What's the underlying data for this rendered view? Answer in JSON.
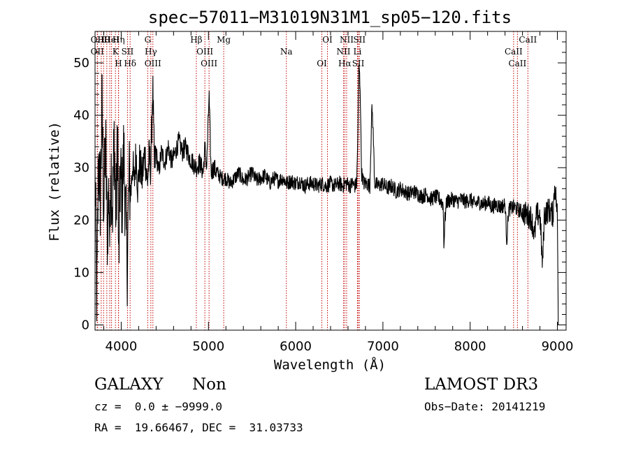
{
  "chart_data": {
    "type": "line",
    "title": "spec−57011−M31019N31M1_sp05−120.fits",
    "xlabel": "Wavelength (Å)",
    "ylabel": "Flux (relative)",
    "xlim": [
      3700,
      9100
    ],
    "ylim": [
      -1,
      56
    ],
    "xticks": [
      4000,
      5000,
      6000,
      7000,
      8000,
      9000
    ],
    "yticks": [
      0,
      10,
      20,
      30,
      40,
      50
    ],
    "xminor_step": 200,
    "yminor_step": 2,
    "grid": false,
    "spectrum_anchors": [
      [
        3700,
        30
      ],
      [
        3720,
        4
      ],
      [
        3740,
        32
      ],
      [
        3760,
        24
      ],
      [
        3780,
        42
      ],
      [
        3800,
        22
      ],
      [
        3820,
        35
      ],
      [
        3840,
        18
      ],
      [
        3860,
        26
      ],
      [
        3870,
        14
      ],
      [
        3880,
        33
      ],
      [
        3900,
        22
      ],
      [
        3920,
        36
      ],
      [
        3940,
        20
      ],
      [
        3960,
        38
      ],
      [
        3970,
        10
      ],
      [
        3990,
        29
      ],
      [
        4010,
        24
      ],
      [
        4030,
        33
      ],
      [
        4050,
        21
      ],
      [
        4070,
        12
      ],
      [
        4090,
        28
      ],
      [
        4110,
        25
      ],
      [
        4130,
        31
      ],
      [
        4150,
        27
      ],
      [
        4170,
        33
      ],
      [
        4190,
        26
      ],
      [
        4210,
        31
      ],
      [
        4240,
        28
      ],
      [
        4270,
        33
      ],
      [
        4300,
        27
      ],
      [
        4320,
        32
      ],
      [
        4340,
        30
      ],
      [
        4361,
        46
      ],
      [
        4380,
        30
      ],
      [
        4400,
        33
      ],
      [
        4430,
        29
      ],
      [
        4460,
        33
      ],
      [
        4500,
        31
      ],
      [
        4540,
        34
      ],
      [
        4580,
        31
      ],
      [
        4620,
        33
      ],
      [
        4660,
        35
      ],
      [
        4700,
        33
      ],
      [
        4740,
        34
      ],
      [
        4780,
        32
      ],
      [
        4820,
        31
      ],
      [
        4860,
        30
      ],
      [
        4900,
        31
      ],
      [
        4940,
        29
      ],
      [
        4959,
        34
      ],
      [
        4980,
        30
      ],
      [
        5007,
        44
      ],
      [
        5030,
        29
      ],
      [
        5060,
        30
      ],
      [
        5100,
        29
      ],
      [
        5150,
        28
      ],
      [
        5200,
        28
      ],
      [
        5250,
        27
      ],
      [
        5300,
        28
      ],
      [
        5350,
        29
      ],
      [
        5400,
        27.5
      ],
      [
        5450,
        28
      ],
      [
        5500,
        29
      ],
      [
        5550,
        27.5
      ],
      [
        5600,
        28
      ],
      [
        5650,
        28.5
      ],
      [
        5700,
        27
      ],
      [
        5750,
        28
      ],
      [
        5800,
        27.5
      ],
      [
        5850,
        28
      ],
      [
        5900,
        27
      ],
      [
        5950,
        27.5
      ],
      [
        6000,
        27
      ],
      [
        6050,
        27.5
      ],
      [
        6100,
        26.5
      ],
      [
        6150,
        27
      ],
      [
        6200,
        27
      ],
      [
        6250,
        26.5
      ],
      [
        6300,
        27
      ],
      [
        6350,
        26.5
      ],
      [
        6400,
        27
      ],
      [
        6450,
        26.5
      ],
      [
        6500,
        27
      ],
      [
        6540,
        26.5
      ],
      [
        6563,
        27
      ],
      [
        6590,
        27
      ],
      [
        6620,
        26.5
      ],
      [
        6650,
        27
      ],
      [
        6680,
        26.5
      ],
      [
        6700,
        27
      ],
      [
        6715,
        38
      ],
      [
        6725,
        50
      ],
      [
        6740,
        45
      ],
      [
        6755,
        29
      ],
      [
        6780,
        27
      ],
      [
        6820,
        27
      ],
      [
        6850,
        26.5
      ],
      [
        6860,
        33
      ],
      [
        6875,
        42
      ],
      [
        6890,
        36
      ],
      [
        6905,
        27
      ],
      [
        6950,
        26.5
      ],
      [
        7000,
        27
      ],
      [
        7050,
        26
      ],
      [
        7100,
        26.5
      ],
      [
        7150,
        25.5
      ],
      [
        7200,
        26
      ],
      [
        7250,
        25.5
      ],
      [
        7300,
        25
      ],
      [
        7350,
        25.5
      ],
      [
        7400,
        25
      ],
      [
        7450,
        24.5
      ],
      [
        7500,
        25
      ],
      [
        7550,
        24
      ],
      [
        7600,
        24.5
      ],
      [
        7650,
        24
      ],
      [
        7690,
        23
      ],
      [
        7700,
        15
      ],
      [
        7710,
        20
      ],
      [
        7730,
        23.5
      ],
      [
        7800,
        24
      ],
      [
        7850,
        23.5
      ],
      [
        7900,
        24
      ],
      [
        7950,
        23.5
      ],
      [
        8000,
        24
      ],
      [
        8050,
        23
      ],
      [
        8100,
        23.5
      ],
      [
        8150,
        23
      ],
      [
        8200,
        23.5
      ],
      [
        8250,
        22.5
      ],
      [
        8300,
        23
      ],
      [
        8350,
        22.5
      ],
      [
        8400,
        23
      ],
      [
        8420,
        16
      ],
      [
        8440,
        22
      ],
      [
        8500,
        22.5
      ],
      [
        8550,
        22
      ],
      [
        8600,
        21.5
      ],
      [
        8650,
        21
      ],
      [
        8700,
        20.5
      ],
      [
        8740,
        17
      ],
      [
        8760,
        21
      ],
      [
        8800,
        21
      ],
      [
        8830,
        11
      ],
      [
        8850,
        21
      ],
      [
        8900,
        22
      ],
      [
        8950,
        21
      ],
      [
        8970,
        27
      ],
      [
        9000,
        21
      ],
      [
        9010,
        1
      ]
    ],
    "lines": [
      {
        "wave": 3726,
        "labels": [
          "OII",
          "OII"
        ]
      },
      {
        "wave": 3729,
        "labels": []
      },
      {
        "wave": 3771,
        "labels": []
      },
      {
        "wave": 3798,
        "labels": [
          "Hθ"
        ]
      },
      {
        "wave": 3835,
        "labels": []
      },
      {
        "wave": 3869,
        "labels": []
      },
      {
        "wave": 3889,
        "labels": [
          "HeI"
        ]
      },
      {
        "wave": 3934,
        "labels": [
          "K"
        ]
      },
      {
        "wave": 3968,
        "labels": [
          "H"
        ]
      },
      {
        "wave": 3970,
        "labels": [
          "Hη"
        ]
      },
      {
        "wave": 4072,
        "labels": [
          "SII"
        ]
      },
      {
        "wave": 4102,
        "labels": [
          "Hδ"
        ]
      },
      {
        "wave": 4304,
        "labels": [
          "G"
        ]
      },
      {
        "wave": 4340,
        "labels": [
          "Hγ"
        ]
      },
      {
        "wave": 4363,
        "labels": [
          "OIII"
        ]
      },
      {
        "wave": 4861,
        "labels": [
          "Hβ"
        ]
      },
      {
        "wave": 4959,
        "labels": [
          "OIII"
        ]
      },
      {
        "wave": 5007,
        "labels": [
          "OIII"
        ]
      },
      {
        "wave": 5175,
        "labels": [
          "Mg"
        ]
      },
      {
        "wave": 5893,
        "labels": [
          "Na"
        ]
      },
      {
        "wave": 6300,
        "labels": [
          "OI"
        ]
      },
      {
        "wave": 6364,
        "labels": [
          "OI"
        ]
      },
      {
        "wave": 6548,
        "labels": [
          "NII"
        ]
      },
      {
        "wave": 6563,
        "labels": [
          "Hα"
        ]
      },
      {
        "wave": 6584,
        "labels": [
          "NII"
        ]
      },
      {
        "wave": 6708,
        "labels": [
          "Li"
        ]
      },
      {
        "wave": 6717,
        "labels": [
          "SII"
        ]
      },
      {
        "wave": 6731,
        "labels": [
          "SII"
        ]
      },
      {
        "wave": 8498,
        "labels": [
          "CaII"
        ]
      },
      {
        "wave": 8542,
        "labels": [
          "CaII"
        ]
      },
      {
        "wave": 8662,
        "labels": [
          "CaII"
        ]
      }
    ],
    "line_color": "#c00000",
    "spectrum_color": "#000000"
  },
  "info": {
    "object_class": "GALAXY",
    "subclass": "Non",
    "redshift": "cz =  0.0 ± −9999.0",
    "coords": "RA =  19.66467, DEC =  31.03733",
    "survey": "LAMOST DR3",
    "obs_date": "Obs−Date: 20141219"
  }
}
